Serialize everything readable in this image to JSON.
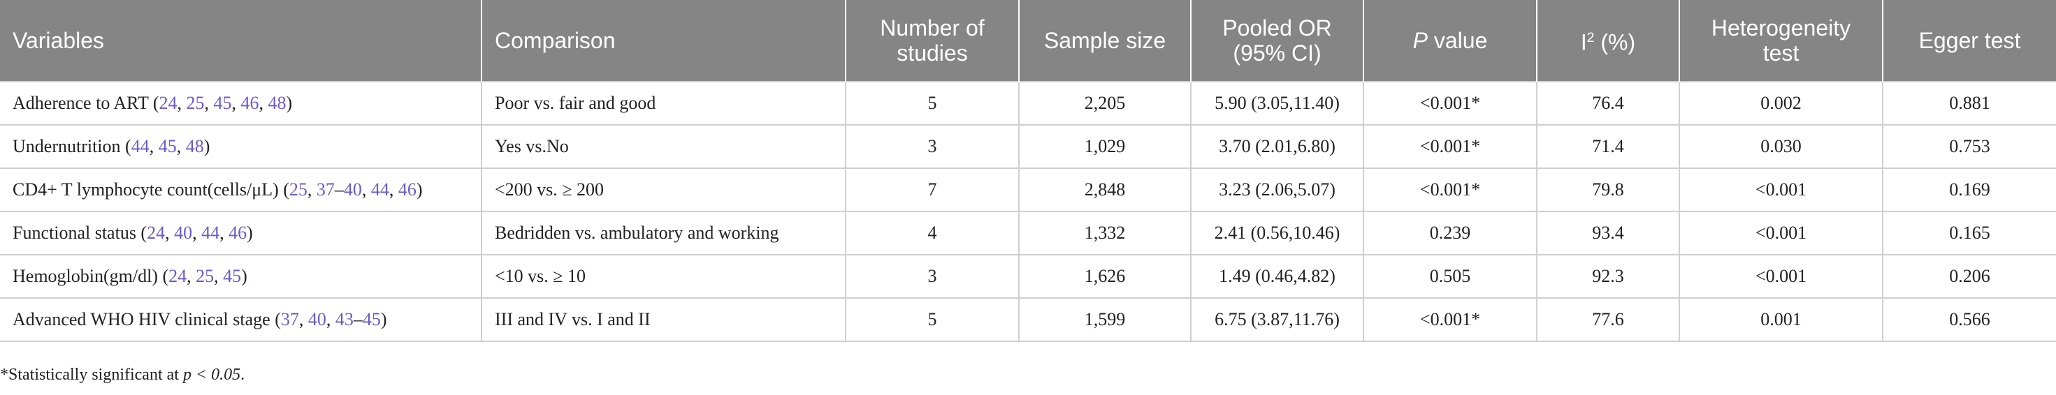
{
  "table": {
    "header": [
      [
        "Variables"
      ],
      [
        "Comparison"
      ],
      [
        [
          "Number of"
        ],
        [
          "studies"
        ]
      ],
      [
        "Sample size"
      ],
      [
        [
          "Pooled OR"
        ],
        [
          "(95% CI)"
        ]
      ],
      [
        {
          "text": "P",
          "style": "italic"
        },
        " value"
      ],
      [
        "I",
        {
          "text": "2",
          "style": "sup"
        },
        " (%)"
      ],
      [
        [
          "Heterogeneity"
        ],
        [
          "test"
        ]
      ],
      [
        "Egger test"
      ]
    ],
    "rows": [
      [
        [
          "Adherence to ART (",
          {
            "text": "24",
            "style": "ref"
          },
          ", ",
          {
            "text": "25",
            "style": "ref"
          },
          ", ",
          {
            "text": "45",
            "style": "ref"
          },
          ", ",
          {
            "text": "46",
            "style": "ref"
          },
          ", ",
          {
            "text": "48",
            "style": "ref"
          },
          ")"
        ],
        "Poor vs. fair and good",
        "5",
        "2,205",
        "5.90 (3.05,11.40)",
        "<0.001*",
        "76.4",
        "0.002",
        "0.881"
      ],
      [
        [
          "Undernutrition (",
          {
            "text": "44",
            "style": "ref"
          },
          ", ",
          {
            "text": "45",
            "style": "ref"
          },
          ", ",
          {
            "text": "48",
            "style": "ref"
          },
          ")"
        ],
        "Yes vs.No",
        "3",
        "1,029",
        "3.70 (2.01,6.80)",
        "<0.001*",
        "71.4",
        "0.030",
        "0.753"
      ],
      [
        [
          "CD4+ T lymphocyte count(cells/μL) (",
          {
            "text": "25",
            "style": "ref"
          },
          ", ",
          {
            "text": "37",
            "style": "ref"
          },
          "–",
          {
            "text": "40",
            "style": "ref"
          },
          ", ",
          {
            "text": "44",
            "style": "ref"
          },
          ", ",
          {
            "text": "46",
            "style": "ref"
          },
          ")"
        ],
        "<200 vs. ≥ 200",
        "7",
        "2,848",
        "3.23 (2.06,5.07)",
        "<0.001*",
        "79.8",
        "<0.001",
        "0.169"
      ],
      [
        [
          "Functional status (",
          {
            "text": "24",
            "style": "ref"
          },
          ", ",
          {
            "text": "40",
            "style": "ref"
          },
          ", ",
          {
            "text": "44",
            "style": "ref"
          },
          ", ",
          {
            "text": "46",
            "style": "ref"
          },
          ")"
        ],
        "Bedridden vs. ambulatory and working",
        "4",
        "1,332",
        "2.41 (0.56,10.46)",
        "0.239",
        "93.4",
        "<0.001",
        "0.165"
      ],
      [
        [
          "Hemoglobin(gm/dl) (",
          {
            "text": "24",
            "style": "ref"
          },
          ", ",
          {
            "text": "25",
            "style": "ref"
          },
          ", ",
          {
            "text": "45",
            "style": "ref"
          },
          ")"
        ],
        "<10 vs. ≥ 10",
        "3",
        "1,626",
        "1.49 (0.46,4.82)",
        "0.505",
        "92.3",
        "<0.001",
        "0.206"
      ],
      [
        [
          "Advanced WHO HIV clinical stage (",
          {
            "text": "37",
            "style": "ref"
          },
          ", ",
          {
            "text": "40",
            "style": "ref"
          },
          ", ",
          {
            "text": "43",
            "style": "ref"
          },
          "–",
          {
            "text": "45",
            "style": "ref"
          },
          ")"
        ],
        "III and IV vs. I and II",
        "5",
        "1,599",
        "6.75 (3.87,11.76)",
        "<0.001*",
        "77.6",
        "0.001",
        "0.566"
      ]
    ],
    "footnote": [
      "*Statistically significant at ",
      {
        "text": "p < 0.05",
        "style": "italic"
      },
      "."
    ]
  }
}
